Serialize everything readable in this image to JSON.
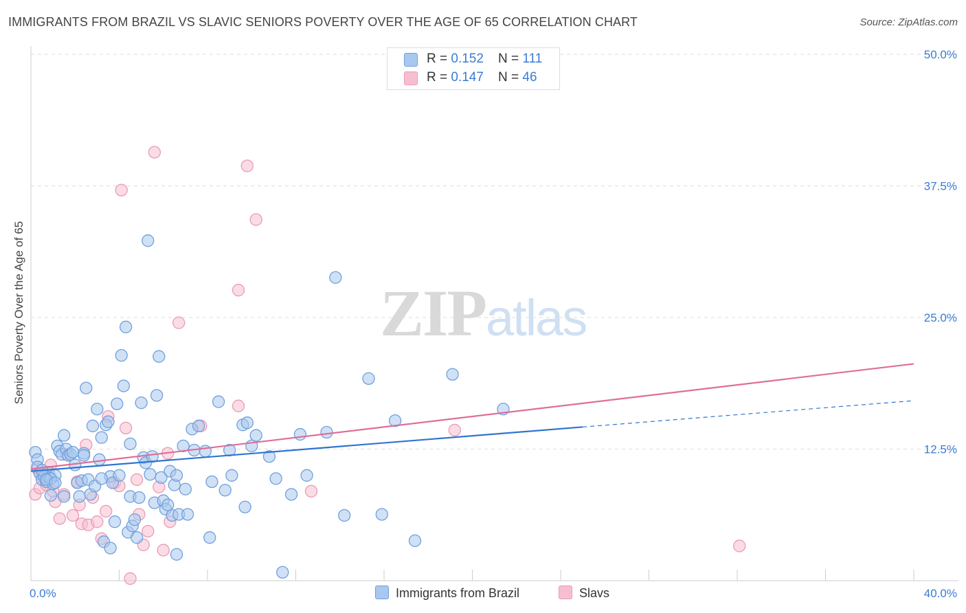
{
  "header": {
    "title": "IMMIGRANTS FROM BRAZIL VS SLAVIC SENIORS POVERTY OVER THE AGE OF 65 CORRELATION CHART",
    "source": "Source: ZipAtlas.com"
  },
  "watermark": {
    "zip": "ZIP",
    "atlas": "atlas"
  },
  "legend": {
    "rows": [
      {
        "r_label": "R = ",
        "r_value": "0.152",
        "n_label": "N = ",
        "n_value": "111"
      },
      {
        "r_label": "R = ",
        "r_value": "0.147",
        "n_label": "N = ",
        "n_value": "46"
      }
    ],
    "series": [
      "Immigrants from Brazil",
      "Slavs"
    ]
  },
  "colors": {
    "blue_fill": "#a9c8ef",
    "blue_stroke": "#6fa0dc",
    "blue_line": "#2f74d0",
    "pink_fill": "#f6bfd0",
    "pink_stroke": "#ec9ab5",
    "pink_line": "#e06d98",
    "tick_text": "#3a7bd5",
    "grid": "#dddddd"
  },
  "chart_data": {
    "type": "scatter",
    "title": "IMMIGRANTS FROM BRAZIL VS SLAVIC SENIORS POVERTY OVER THE AGE OF 65 CORRELATION CHART",
    "xlabel": "",
    "ylabel": "Seniors Poverty Over the Age of 65",
    "xlim": [
      0,
      40
    ],
    "ylim": [
      0,
      50
    ],
    "x_tick_labels": [
      "0.0%",
      "40.0%"
    ],
    "y_ticks": [
      12.5,
      25.0,
      37.5,
      50.0
    ],
    "y_tick_labels": [
      "12.5%",
      "25.0%",
      "37.5%",
      "50.0%"
    ],
    "grid": true,
    "legend_position": "top-center",
    "series": [
      {
        "name": "Immigrants from Brazil",
        "color": "#a9c8ef",
        "r": 0.152,
        "n": 111,
        "trend": {
          "x0": 0,
          "y0": 10.4,
          "x1": 25,
          "y1": 14.6,
          "dash_to_x": 40,
          "dash_to_y": 17.1
        },
        "points": [
          [
            0.2,
            12.2
          ],
          [
            0.3,
            11.5
          ],
          [
            0.3,
            10.8
          ],
          [
            0.4,
            10.2
          ],
          [
            0.5,
            9.6
          ],
          [
            0.6,
            9.9
          ],
          [
            0.7,
            9.4
          ],
          [
            0.8,
            10.3
          ],
          [
            0.8,
            9.8
          ],
          [
            0.9,
            8.1
          ],
          [
            1.0,
            9.2
          ],
          [
            1.1,
            10.0
          ],
          [
            1.2,
            12.8
          ],
          [
            1.3,
            12.3
          ],
          [
            1.4,
            12.0
          ],
          [
            1.5,
            13.8
          ],
          [
            1.6,
            12.5
          ],
          [
            1.7,
            11.9
          ],
          [
            1.8,
            12.0
          ],
          [
            1.9,
            12.2
          ],
          [
            2.0,
            11.0
          ],
          [
            2.1,
            9.3
          ],
          [
            2.2,
            8.0
          ],
          [
            2.3,
            9.5
          ],
          [
            2.4,
            12.1
          ],
          [
            2.5,
            18.3
          ],
          [
            2.6,
            9.6
          ],
          [
            2.7,
            8.2
          ],
          [
            2.8,
            14.7
          ],
          [
            3.0,
            16.3
          ],
          [
            3.1,
            11.5
          ],
          [
            3.2,
            13.6
          ],
          [
            3.3,
            3.7
          ],
          [
            3.4,
            14.8
          ],
          [
            3.5,
            15.1
          ],
          [
            3.6,
            9.9
          ],
          [
            3.7,
            9.3
          ],
          [
            3.8,
            5.6
          ],
          [
            3.9,
            16.8
          ],
          [
            4.0,
            10.0
          ],
          [
            4.1,
            21.4
          ],
          [
            4.2,
            18.5
          ],
          [
            4.3,
            24.1
          ],
          [
            4.4,
            4.6
          ],
          [
            4.5,
            8.0
          ],
          [
            4.6,
            5.2
          ],
          [
            4.7,
            5.8
          ],
          [
            4.8,
            4.1
          ],
          [
            4.9,
            7.9
          ],
          [
            5.0,
            16.9
          ],
          [
            5.1,
            11.7
          ],
          [
            5.2,
            11.2
          ],
          [
            5.3,
            32.3
          ],
          [
            5.4,
            10.1
          ],
          [
            5.5,
            11.8
          ],
          [
            5.6,
            7.4
          ],
          [
            5.7,
            17.6
          ],
          [
            5.8,
            21.3
          ],
          [
            5.9,
            9.8
          ],
          [
            6.0,
            7.6
          ],
          [
            6.1,
            6.8
          ],
          [
            6.2,
            7.2
          ],
          [
            6.3,
            10.4
          ],
          [
            6.4,
            6.2
          ],
          [
            6.5,
            9.1
          ],
          [
            6.6,
            2.5
          ],
          [
            6.7,
            6.3
          ],
          [
            6.9,
            12.8
          ],
          [
            7.0,
            8.7
          ],
          [
            7.1,
            6.3
          ],
          [
            7.3,
            14.4
          ],
          [
            7.4,
            12.4
          ],
          [
            7.6,
            14.7
          ],
          [
            7.9,
            12.3
          ],
          [
            8.1,
            4.1
          ],
          [
            8.2,
            9.4
          ],
          [
            8.5,
            17.0
          ],
          [
            8.8,
            8.6
          ],
          [
            9.1,
            10.0
          ],
          [
            9.6,
            14.8
          ],
          [
            9.7,
            7.0
          ],
          [
            9.8,
            15.0
          ],
          [
            10.0,
            12.8
          ],
          [
            10.2,
            13.8
          ],
          [
            10.8,
            11.8
          ],
          [
            11.1,
            9.7
          ],
          [
            11.4,
            0.8
          ],
          [
            11.8,
            8.2
          ],
          [
            12.2,
            13.9
          ],
          [
            12.5,
            10.0
          ],
          [
            13.4,
            14.1
          ],
          [
            13.8,
            28.8
          ],
          [
            14.2,
            6.2
          ],
          [
            15.3,
            19.2
          ],
          [
            15.9,
            6.3
          ],
          [
            16.5,
            15.2
          ],
          [
            17.4,
            3.8
          ],
          [
            19.1,
            19.6
          ],
          [
            21.4,
            16.3
          ],
          [
            2.9,
            9.0
          ],
          [
            3.2,
            9.7
          ],
          [
            0.5,
            10.5
          ],
          [
            0.9,
            9.7
          ],
          [
            1.5,
            8.0
          ],
          [
            2.4,
            11.9
          ],
          [
            0.7,
            9.6
          ],
          [
            1.1,
            9.3
          ],
          [
            4.5,
            13.0
          ],
          [
            6.6,
            10.0
          ],
          [
            9.0,
            12.4
          ],
          [
            3.6,
            3.1
          ]
        ]
      },
      {
        "name": "Slavs",
        "color": "#f6bfd0",
        "r": 0.147,
        "n": 46,
        "trend": {
          "x0": 0,
          "y0": 10.6,
          "x1": 40,
          "y1": 20.6
        },
        "points": [
          [
            0.2,
            8.2
          ],
          [
            0.3,
            10.6
          ],
          [
            0.4,
            8.8
          ],
          [
            0.5,
            9.9
          ],
          [
            0.6,
            10.1
          ],
          [
            0.7,
            9.1
          ],
          [
            0.9,
            11.0
          ],
          [
            1.0,
            8.5
          ],
          [
            1.1,
            7.5
          ],
          [
            1.3,
            5.9
          ],
          [
            1.5,
            8.2
          ],
          [
            1.6,
            12.0
          ],
          [
            1.9,
            6.2
          ],
          [
            2.1,
            9.4
          ],
          [
            2.2,
            7.2
          ],
          [
            2.3,
            5.4
          ],
          [
            2.5,
            12.9
          ],
          [
            2.6,
            5.3
          ],
          [
            2.8,
            7.9
          ],
          [
            3.0,
            5.6
          ],
          [
            3.2,
            4.0
          ],
          [
            3.4,
            6.6
          ],
          [
            3.5,
            15.6
          ],
          [
            3.8,
            9.3
          ],
          [
            4.0,
            9.0
          ],
          [
            4.1,
            37.1
          ],
          [
            4.3,
            14.5
          ],
          [
            4.5,
            0.2
          ],
          [
            4.8,
            9.6
          ],
          [
            4.9,
            6.3
          ],
          [
            5.1,
            3.4
          ],
          [
            5.3,
            4.7
          ],
          [
            5.6,
            40.7
          ],
          [
            5.8,
            8.9
          ],
          [
            6.0,
            2.9
          ],
          [
            6.2,
            12.1
          ],
          [
            6.3,
            5.6
          ],
          [
            6.7,
            24.5
          ],
          [
            7.7,
            14.7
          ],
          [
            9.4,
            27.6
          ],
          [
            9.4,
            16.6
          ],
          [
            9.8,
            39.4
          ],
          [
            10.2,
            34.3
          ],
          [
            12.7,
            8.5
          ],
          [
            19.2,
            14.3
          ],
          [
            32.1,
            3.3
          ]
        ]
      }
    ]
  }
}
